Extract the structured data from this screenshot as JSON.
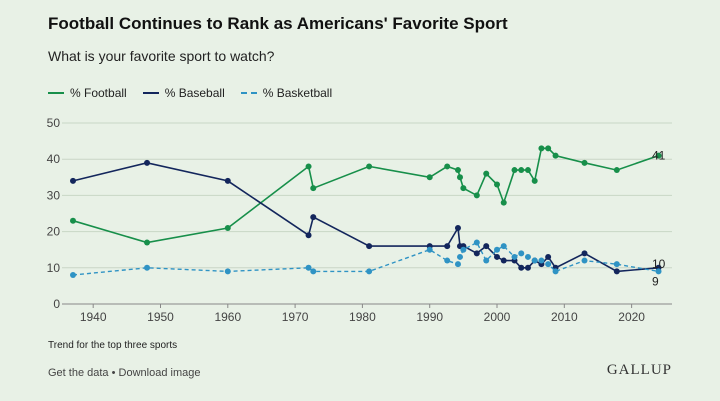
{
  "header": {
    "title": "Football Continues to Rank as Americans' Favorite Sport",
    "subtitle": "What is your favorite sport to watch?"
  },
  "footer": {
    "note": "Trend for the top three sports",
    "get_data": "Get the data",
    "separator": "•",
    "download": "Download image",
    "brand": "GALLUP"
  },
  "colors": {
    "background": "#e8f1e6",
    "football": "#178f4a",
    "baseball": "#13265c",
    "basketball": "#2f93c4",
    "grid": "#c9d6c5"
  },
  "chart_data": {
    "type": "line",
    "title": "Football Continues to Rank as Americans' Favorite Sport",
    "subtitle": "What is your favorite sport to watch?",
    "xlabel": "",
    "ylabel": "",
    "xlim": [
      1937,
      2026
    ],
    "ylim": [
      0,
      50
    ],
    "x_ticks": [
      1940,
      1950,
      1960,
      1970,
      1980,
      1990,
      2000,
      2010,
      2020
    ],
    "y_ticks": [
      0,
      10,
      20,
      30,
      40,
      50
    ],
    "grid": true,
    "legend_position": "top-left",
    "series": [
      {
        "name": "% Football",
        "style": "solid",
        "points": [
          [
            1937,
            23
          ],
          [
            1948,
            17
          ],
          [
            1960,
            21
          ],
          [
            1972,
            38
          ],
          [
            1972.7,
            32
          ],
          [
            1981,
            38
          ],
          [
            1990,
            35
          ],
          [
            1992.6,
            38
          ],
          [
            1994.2,
            37
          ],
          [
            1994.5,
            35
          ],
          [
            1995,
            32
          ],
          [
            1997,
            30
          ],
          [
            1998.4,
            36
          ],
          [
            2000,
            33
          ],
          [
            2001,
            28
          ],
          [
            2002.6,
            37
          ],
          [
            2003.6,
            37
          ],
          [
            2004.6,
            37
          ],
          [
            2005.6,
            34
          ],
          [
            2006.6,
            43
          ],
          [
            2007.6,
            43
          ],
          [
            2008.7,
            41
          ],
          [
            2013,
            39
          ],
          [
            2017.8,
            37
          ],
          [
            2024,
            41
          ]
        ],
        "end_label": "41"
      },
      {
        "name": "% Baseball",
        "style": "solid",
        "points": [
          [
            1937,
            34
          ],
          [
            1948,
            39
          ],
          [
            1960,
            34
          ],
          [
            1972,
            19
          ],
          [
            1972.7,
            24
          ],
          [
            1981,
            16
          ],
          [
            1990,
            16
          ],
          [
            1992.6,
            16
          ],
          [
            1994.2,
            21
          ],
          [
            1994.5,
            16
          ],
          [
            1995,
            16
          ],
          [
            1997,
            14
          ],
          [
            1998.4,
            16
          ],
          [
            2000,
            13
          ],
          [
            2001,
            12
          ],
          [
            2002.6,
            12
          ],
          [
            2003.6,
            10
          ],
          [
            2004.6,
            10
          ],
          [
            2005.6,
            12
          ],
          [
            2006.6,
            11
          ],
          [
            2007.6,
            13
          ],
          [
            2008.7,
            10
          ],
          [
            2013,
            14
          ],
          [
            2017.8,
            9
          ],
          [
            2024,
            10
          ]
        ],
        "end_label": "10"
      },
      {
        "name": "% Basketball",
        "style": "dashed",
        "points": [
          [
            1937,
            8
          ],
          [
            1948,
            10
          ],
          [
            1960,
            9
          ],
          [
            1972,
            10
          ],
          [
            1972.7,
            9
          ],
          [
            1981,
            9
          ],
          [
            1990,
            15
          ],
          [
            1992.6,
            12
          ],
          [
            1994.2,
            11
          ],
          [
            1994.5,
            13
          ],
          [
            1995,
            15
          ],
          [
            1997,
            17
          ],
          [
            1998.4,
            12
          ],
          [
            2000,
            15
          ],
          [
            2001,
            16
          ],
          [
            2002.6,
            13
          ],
          [
            2003.6,
            14
          ],
          [
            2004.6,
            13
          ],
          [
            2005.6,
            12
          ],
          [
            2006.6,
            12
          ],
          [
            2007.6,
            11
          ],
          [
            2008.7,
            9
          ],
          [
            2013,
            12
          ],
          [
            2017.8,
            11
          ],
          [
            2024,
            9
          ]
        ],
        "end_label": "9"
      }
    ]
  }
}
